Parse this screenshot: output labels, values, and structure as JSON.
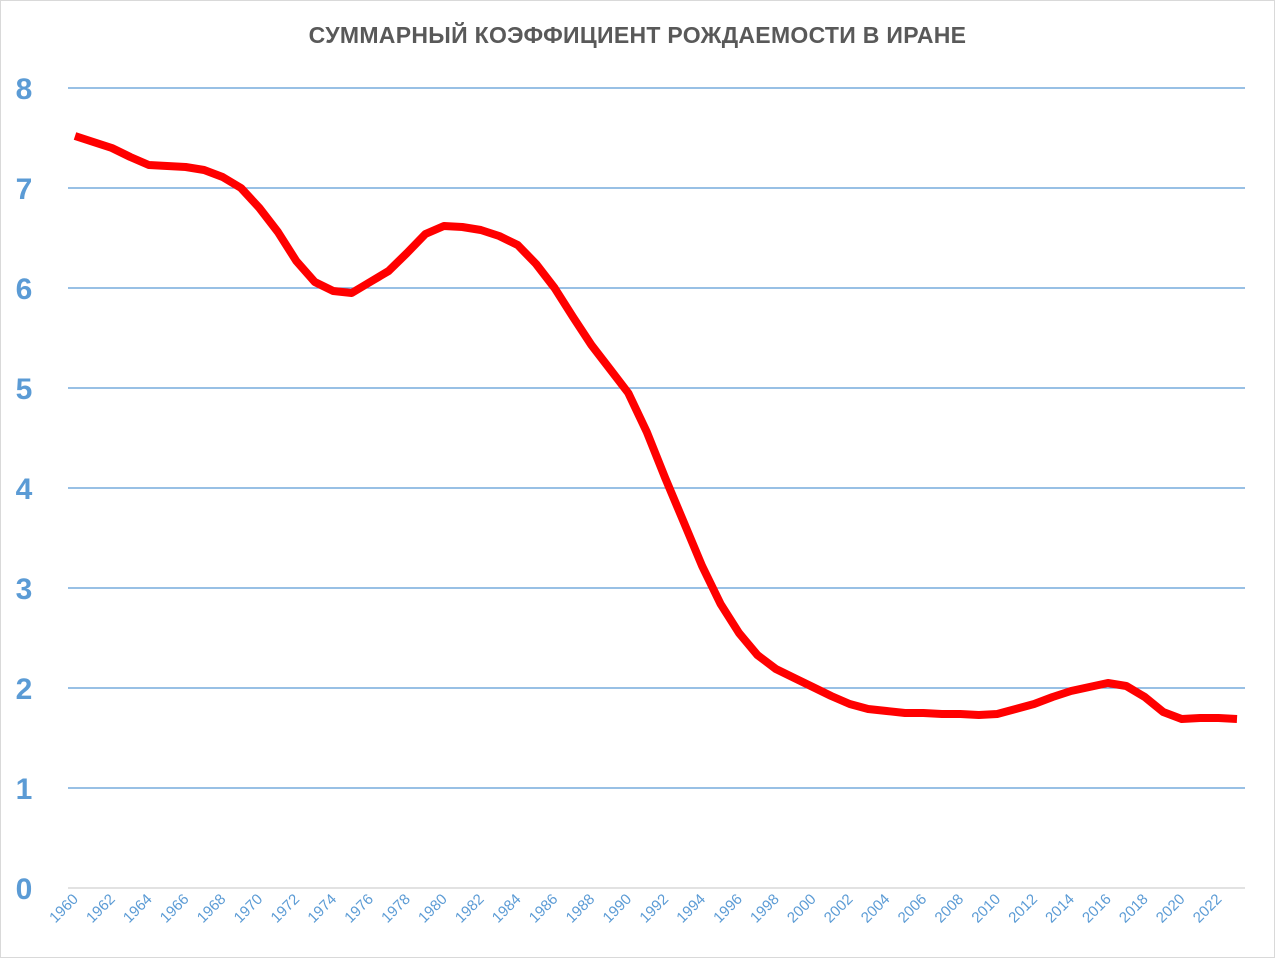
{
  "chart_data": {
    "type": "line",
    "title": "СУММАРНЫЙ КОЭФФИЦИЕНТ РОЖДАЕМОСТИ В ИРАНЕ",
    "ylim": [
      0,
      8
    ],
    "y_ticks": [
      "0",
      "1",
      "2",
      "3",
      "4",
      "5",
      "6",
      "7",
      "8"
    ],
    "x_tick_labels": [
      "1960",
      "1962",
      "1964",
      "1966",
      "1968",
      "1970",
      "1972",
      "1974",
      "1976",
      "1978",
      "1980",
      "1982",
      "1984",
      "1986",
      "1988",
      "1990",
      "1992",
      "1994",
      "1996",
      "1998",
      "2000",
      "2002",
      "2004",
      "2006",
      "2008",
      "2010",
      "2012",
      "2014",
      "2016",
      "2018",
      "2020",
      "2022"
    ],
    "grid": true,
    "legend": "none",
    "line_color": "#ff0000",
    "series": [
      {
        "x": [
          1960,
          1961,
          1962,
          1963,
          1964,
          1965,
          1966,
          1967,
          1968,
          1969,
          1970,
          1971,
          1972,
          1973,
          1974,
          1975,
          1976,
          1977,
          1978,
          1979,
          1980,
          1981,
          1982,
          1983,
          1984,
          1985,
          1986,
          1987,
          1988,
          1989,
          1990,
          1991,
          1992,
          1993,
          1994,
          1995,
          1996,
          1997,
          1998,
          1999,
          2000,
          2001,
          2002,
          2003,
          2004,
          2005,
          2006,
          2007,
          2008,
          2009,
          2010,
          2011,
          2012,
          2013,
          2014,
          2015,
          2016,
          2017,
          2018,
          2019,
          2020,
          2021,
          2022,
          2023
        ],
        "values": [
          7.52,
          7.46,
          7.4,
          7.31,
          7.23,
          7.22,
          7.21,
          7.18,
          7.11,
          7.0,
          6.8,
          6.56,
          6.27,
          6.06,
          5.97,
          5.95,
          6.06,
          6.17,
          6.35,
          6.54,
          6.62,
          6.61,
          6.58,
          6.52,
          6.43,
          6.24,
          6.0,
          5.71,
          5.43,
          5.19,
          4.95,
          4.56,
          4.1,
          3.66,
          3.22,
          2.84,
          2.55,
          2.33,
          2.19,
          2.1,
          2.01,
          1.92,
          1.84,
          1.79,
          1.77,
          1.75,
          1.75,
          1.74,
          1.74,
          1.73,
          1.74,
          1.79,
          1.84,
          1.91,
          1.97,
          2.01,
          2.05,
          2.02,
          1.91,
          1.76,
          1.69,
          1.7,
          1.7,
          1.69
        ]
      }
    ]
  }
}
